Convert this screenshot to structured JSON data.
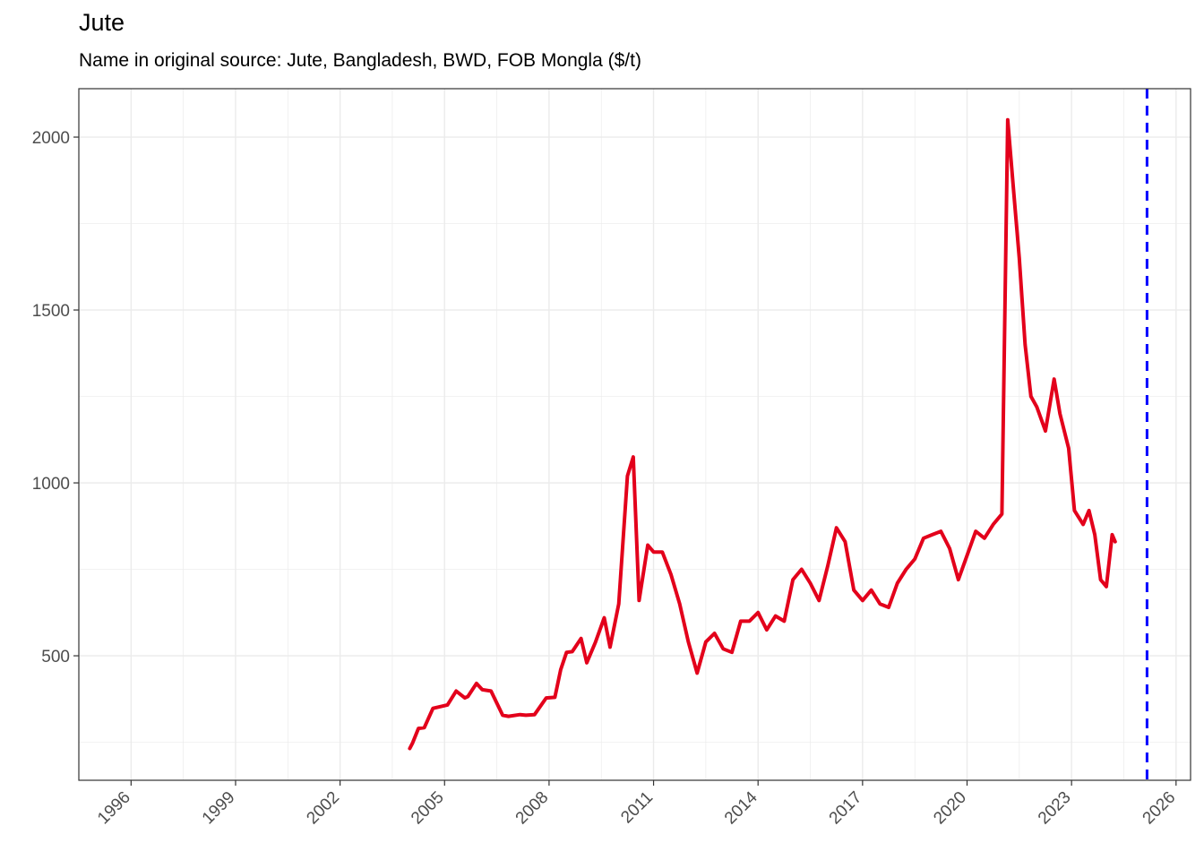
{
  "title": "Jute",
  "subtitle": "Name in original source: Jute, Bangladesh, BWD, FOB Mongla ($/t)",
  "colors": {
    "series": "#e3001b",
    "marker": "#0000ff",
    "grid": "#ebebeb",
    "panel_border": "#333333"
  },
  "chart_data": {
    "type": "line",
    "title": "Jute",
    "subtitle": "Name in original source: Jute, Bangladesh, BWD, FOB Mongla ($/t)",
    "xlabel": "",
    "ylabel": "",
    "xlim": [
      "1994-07-01",
      "2026-06-01"
    ],
    "ylim": [
      140,
      2140
    ],
    "x_ticks": [
      "1996",
      "1999",
      "2002",
      "2005",
      "2008",
      "2011",
      "2014",
      "2017",
      "2020",
      "2023",
      "2026"
    ],
    "y_ticks": [
      500,
      1000,
      1500,
      2000
    ],
    "grid": true,
    "reference_line": {
      "x": "2025-03-01",
      "style": "dashed",
      "color": "#0000ff"
    },
    "series": [
      {
        "x": [
          "2004-01",
          "2004-02",
          "2004-04",
          "2004-06",
          "2004-09",
          "2004-11",
          "2005-02",
          "2005-05",
          "2005-08",
          "2005-09",
          "2005-12",
          "2006-02",
          "2006-05",
          "2006-09",
          "2006-11",
          "2007-03",
          "2007-05",
          "2007-08",
          "2007-12",
          "2008-03",
          "2008-05",
          "2008-07",
          "2008-09",
          "2008-12",
          "2009-02",
          "2009-05",
          "2009-08",
          "2009-10",
          "2010-01",
          "2010-04",
          "2010-06",
          "2010-08",
          "2010-11",
          "2011-01",
          "2011-04",
          "2011-07",
          "2011-10",
          "2012-01",
          "2012-04",
          "2012-07",
          "2012-10",
          "2013-01",
          "2013-04",
          "2013-07",
          "2013-10",
          "2014-01",
          "2014-04",
          "2014-07",
          "2014-10",
          "2015-01",
          "2015-04",
          "2015-07",
          "2015-10",
          "2016-01",
          "2016-04",
          "2016-07",
          "2016-10",
          "2017-01",
          "2017-04",
          "2017-07",
          "2017-10",
          "2018-01",
          "2018-04",
          "2018-07",
          "2018-10",
          "2019-01",
          "2019-04",
          "2019-07",
          "2019-10",
          "2020-01",
          "2020-04",
          "2020-07",
          "2020-10",
          "2021-01",
          "2021-03",
          "2021-05",
          "2021-07",
          "2021-09",
          "2021-11",
          "2022-01",
          "2022-04",
          "2022-07",
          "2022-09",
          "2022-12",
          "2023-02",
          "2023-05",
          "2023-07",
          "2023-09",
          "2023-11",
          "2024-01",
          "2024-03",
          "2024-04"
        ],
        "values": [
          232,
          248,
          290,
          292,
          348,
          352,
          358,
          398,
          378,
          382,
          420,
          402,
          398,
          328,
          325,
          330,
          328,
          330,
          378,
          380,
          460,
          510,
          512,
          550,
          480,
          540,
          610,
          525,
          650,
          1020,
          1075,
          660,
          820,
          800,
          800,
          735,
          650,
          540,
          450,
          540,
          565,
          520,
          510,
          600,
          600,
          625,
          575,
          615,
          600,
          720,
          750,
          710,
          660,
          760,
          870,
          830,
          690,
          660,
          690,
          650,
          640,
          710,
          750,
          780,
          840,
          850,
          860,
          810,
          720,
          790,
          860,
          840,
          880,
          910,
          2050,
          1850,
          1650,
          1400,
          1250,
          1220,
          1150,
          1300,
          1200,
          1100,
          920,
          880,
          920,
          850,
          720,
          700,
          850,
          830
        ]
      }
    ]
  }
}
